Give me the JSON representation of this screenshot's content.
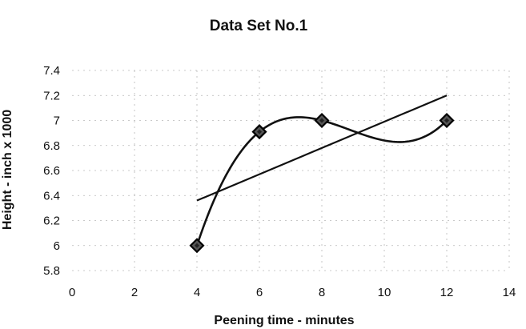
{
  "chart_data": {
    "type": "scatter",
    "title": "Data Set No.1",
    "xlabel": "Peening time - minutes",
    "ylabel": "Height - inch x 1000",
    "xlim": [
      0,
      14
    ],
    "ylim": [
      5.8,
      7.4
    ],
    "xticks": [
      "0",
      "2",
      "4",
      "6",
      "8",
      "10",
      "12",
      "14"
    ],
    "yticks": [
      "5.8",
      "6",
      "6.2",
      "6.4",
      "6.6",
      "6.8",
      "7",
      "7.2",
      "7.4"
    ],
    "grid": true,
    "legend": "none",
    "series": [
      {
        "marker": "diamond",
        "points": [
          {
            "x": 4,
            "y": 6.0
          },
          {
            "x": 6,
            "y": 6.91
          },
          {
            "x": 8,
            "y": 7.0
          },
          {
            "x": 12,
            "y": 7.0
          }
        ]
      }
    ],
    "trendlines": [
      {
        "type": "linear",
        "x": [
          4,
          12
        ],
        "y": [
          6.36,
          7.2
        ]
      },
      {
        "type": "polynomial",
        "order": 3,
        "x": [
          4,
          6,
          8,
          12
        ],
        "y": [
          6.0,
          6.91,
          7.0,
          7.0
        ]
      }
    ],
    "colors": {
      "line": "#111111",
      "marker_fill": "#555555",
      "grid": "#b8b8b8"
    }
  }
}
